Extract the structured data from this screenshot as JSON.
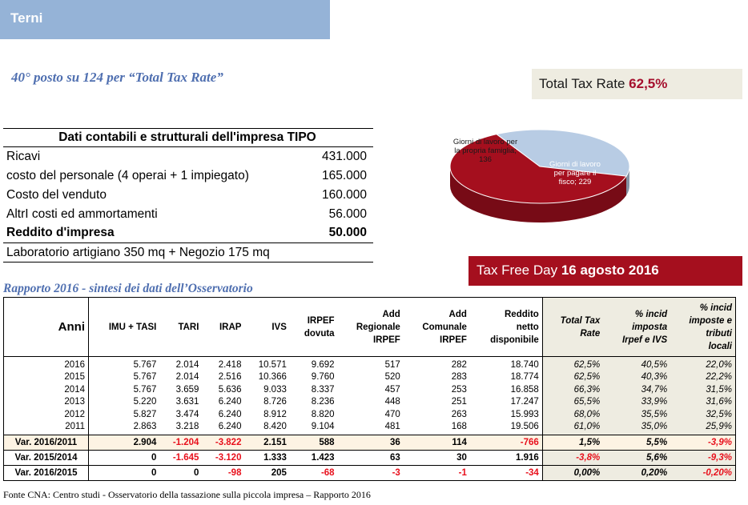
{
  "title": "Terni",
  "rank": "40° posto su 124 per “Total Tax Rate”",
  "total_tax_rate": {
    "label": "Total Tax Rate",
    "value": "62,5%"
  },
  "tax_free_day": {
    "label": "Tax Free Day",
    "value": "16 agosto 2016"
  },
  "impresa": {
    "header": "Dati contabili e strutturali dell'impresa TIPO",
    "rows": [
      {
        "label": "Ricavi",
        "value": "431.000"
      },
      {
        "label": "costo del personale (4 operai + 1 impiegato)",
        "value": "165.000"
      },
      {
        "label": "Costo del venduto",
        "value": "160.000"
      },
      {
        "label": "AltrI costi ed ammortamenti",
        "value": "56.000"
      },
      {
        "label": "Reddito d'impresa",
        "value": "50.000"
      }
    ],
    "footer": "Laboratorio artigiano 350 mq + Negozio 175 mq"
  },
  "pie": {
    "slices": [
      {
        "label_lines": [
          "Giorni di lavoro per",
          "la propria famiglia;",
          "136"
        ],
        "value": 136,
        "color": "#b8cce4"
      },
      {
        "label_lines": [
          "Giorni di lavoro",
          "per pagare il",
          "fisco; 229"
        ],
        "value": 229,
        "color": "#a50f1e"
      }
    ]
  },
  "subtitle": "Rapporto 2016 - sintesi dei dati dell’Osservatorio",
  "oss": {
    "headers": [
      [
        "Anni"
      ],
      [
        "IMU + TASI"
      ],
      [
        "TARI"
      ],
      [
        "IRAP"
      ],
      [
        "IVS"
      ],
      [
        "IRPEF",
        "dovuta"
      ],
      [
        "Add",
        "Regionale",
        "IRPEF"
      ],
      [
        "Add",
        "Comunale",
        "IRPEF"
      ],
      [
        "Reddito",
        "netto",
        "disponibile"
      ],
      [
        "Total Tax",
        "Rate"
      ],
      [
        "% incid",
        "imposta",
        "Irpef e IVS"
      ],
      [
        "% incid",
        "imposte e",
        "tributi",
        "locali"
      ]
    ],
    "rows": [
      [
        "2016",
        "5.767",
        "2.014",
        "2.418",
        "10.571",
        "9.692",
        "517",
        "282",
        "18.740",
        "62,5%",
        "40,5%",
        "22,0%"
      ],
      [
        "2015",
        "5.767",
        "2.014",
        "2.516",
        "10.366",
        "9.760",
        "520",
        "283",
        "18.774",
        "62,5%",
        "40,3%",
        "22,2%"
      ],
      [
        "2014",
        "5.767",
        "3.659",
        "5.636",
        "9.033",
        "8.337",
        "457",
        "253",
        "16.858",
        "66,3%",
        "34,7%",
        "31,5%"
      ],
      [
        "2013",
        "5.220",
        "3.631",
        "6.240",
        "8.726",
        "8.236",
        "448",
        "251",
        "17.247",
        "65,5%",
        "33,9%",
        "31,6%"
      ],
      [
        "2012",
        "5.827",
        "3.474",
        "6.240",
        "8.912",
        "8.820",
        "470",
        "263",
        "15.993",
        "68,0%",
        "35,5%",
        "32,5%"
      ],
      [
        "2011",
        "2.863",
        "3.218",
        "6.240",
        "8.420",
        "9.104",
        "481",
        "168",
        "19.506",
        "61,0%",
        "35,0%",
        "25,9%"
      ]
    ],
    "variations": [
      [
        "Var. 2016/2011",
        "2.904",
        "-1.204",
        "-3.822",
        "2.151",
        "588",
        "36",
        "114",
        "-766",
        "1,5%",
        "5,5%",
        "-3,9%"
      ],
      [
        "Var. 2015/2014",
        "0",
        "-1.645",
        "-3.120",
        "1.333",
        "1.423",
        "63",
        "30",
        "1.916",
        "-3,8%",
        "5,6%",
        "-9,3%"
      ],
      [
        "Var. 2016/2015",
        "0",
        "0",
        "-98",
        "205",
        "-68",
        "-3",
        "-1",
        "-34",
        "0,00%",
        "0,20%",
        "-0,20%"
      ]
    ]
  },
  "fonte": "Fonte CNA: Centro studi - Osservatorio della tassazione sulla piccola impresa – Rapporto 2016",
  "colors": {
    "accent_blue": "#95b3d7",
    "brand_red": "#a50f1e",
    "negative": "#e8101c"
  }
}
